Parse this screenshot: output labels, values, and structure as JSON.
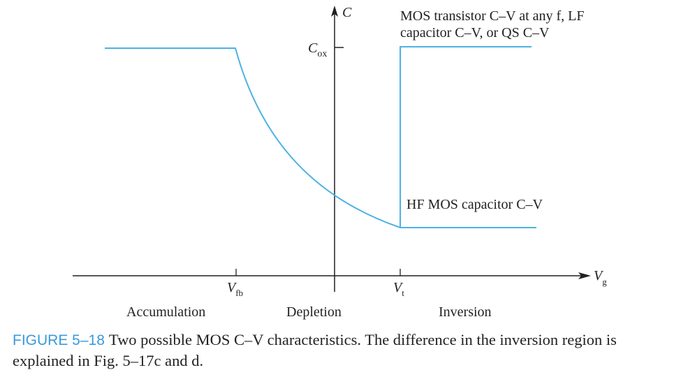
{
  "colors": {
    "curve": "#4db2e4",
    "axis": "#231f20",
    "caption_label": "#3a9ad9",
    "text": "#231f20"
  },
  "axes": {
    "y_label": "C",
    "x_label_main": "V",
    "x_label_sub": "g",
    "cox_main": "C",
    "cox_sub": "ox"
  },
  "ticks": {
    "vfb_main": "V",
    "vfb_sub": "fb",
    "vt_main": "V",
    "vt_sub": "t"
  },
  "annotations": {
    "upper_line1": "MOS transistor C–V at any f, LF",
    "upper_line2": "capacitor C–V, or QS C–V",
    "lower": "HF MOS capacitor C–V"
  },
  "regions": {
    "accumulation": "Accumulation",
    "depletion": "Depletion",
    "inversion": "Inversion"
  },
  "caption": {
    "label": "FIGURE 5–18",
    "text": "Two possible MOS C–V characteristics. The difference in the inversion region is explained in Fig. 5–17c and d."
  }
}
